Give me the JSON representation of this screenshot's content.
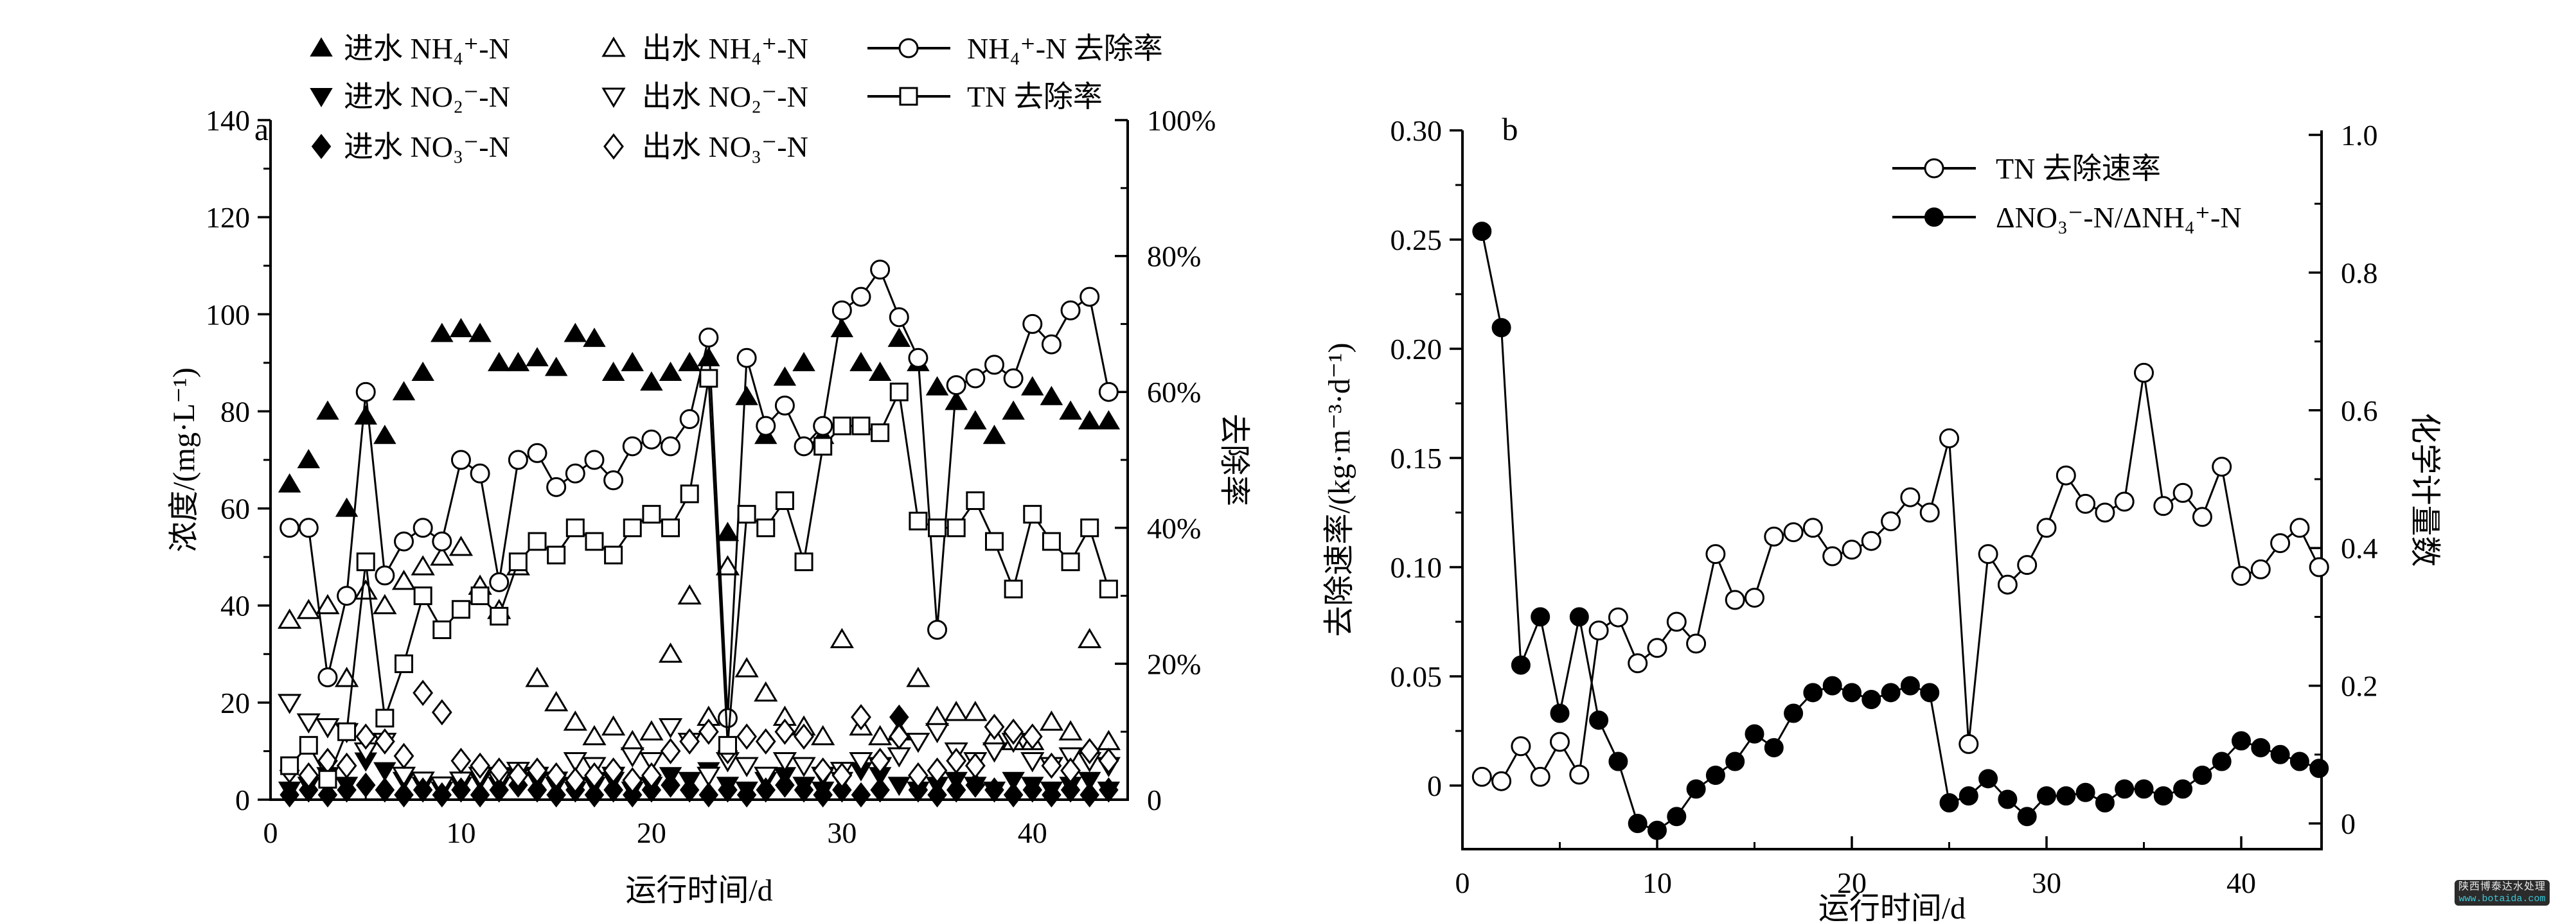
{
  "figure": {
    "background": "#ffffff",
    "ink_color": "#000000",
    "panels": [
      "a",
      "b"
    ]
  },
  "watermark": {
    "line1": "陕西博泰达水处理",
    "line2": "www.botaida.com",
    "bg_color": "#2b2b2b",
    "line1_color": "#e8e8e8",
    "line2_color": "#3bc8d6"
  },
  "chart_data": [
    {
      "panel_label": "a",
      "type": "scatter",
      "xlabel": "运行时间/d",
      "ylabel_left": "浓度/(mg·L⁻¹)",
      "ylabel_right": "去除率",
      "xlim": [
        0,
        45
      ],
      "ylim_left": [
        0,
        140
      ],
      "ylim_right_percent": [
        0,
        100
      ],
      "x_tick_labels": [
        "0",
        "10",
        "20",
        "30",
        "40"
      ],
      "x_ticks": [
        0,
        10,
        20,
        30,
        40
      ],
      "x_minor_ticks": [
        5,
        15,
        25,
        35,
        45
      ],
      "y_left_tick_labels": [
        "0",
        "20",
        "40",
        "60",
        "80",
        "100",
        "120",
        "140"
      ],
      "y_left_ticks": [
        0,
        20,
        40,
        60,
        80,
        100,
        120,
        140
      ],
      "y_left_minor_ticks": [
        10,
        30,
        50,
        70,
        90,
        110,
        130
      ],
      "y_right_tick_labels": [
        "0",
        "20%",
        "40%",
        "60%",
        "80%",
        "100%"
      ],
      "y_right_ticks": [
        0,
        20,
        40,
        60,
        80,
        100
      ],
      "y_right_minor_ticks": [
        10,
        30,
        50,
        70,
        90
      ],
      "grid": false,
      "legend_position": "top",
      "days": [
        1,
        2,
        3,
        4,
        5,
        6,
        7,
        8,
        9,
        10,
        11,
        12,
        13,
        14,
        15,
        16,
        17,
        18,
        19,
        20,
        21,
        22,
        23,
        24,
        25,
        26,
        27,
        28,
        29,
        30,
        31,
        32,
        33,
        34,
        35,
        36,
        37,
        38,
        39,
        40,
        41,
        42,
        43,
        44
      ],
      "series": [
        {
          "name": "进水 NH₄⁺-N",
          "marker": "triangle-up-filled",
          "axis": "left",
          "line": false,
          "values": [
            65,
            70,
            80,
            60,
            79,
            75,
            84,
            88,
            96,
            97,
            96,
            90,
            90,
            91,
            89,
            96,
            95,
            88,
            90,
            86,
            88,
            90,
            91,
            55,
            83,
            75,
            87,
            90,
            75,
            97,
            90,
            88,
            95,
            90,
            85,
            82,
            78,
            75,
            80,
            85,
            83,
            80,
            78,
            78
          ]
        },
        {
          "name": "出水 NH₄⁺-N",
          "marker": "triangle-up-open",
          "axis": "left",
          "line": false,
          "values": [
            37,
            39,
            40,
            25,
            43,
            40,
            45,
            48,
            50,
            52,
            44,
            39,
            48,
            25,
            20,
            16,
            13,
            15,
            12,
            14,
            30,
            42,
            17,
            48,
            27,
            22,
            17,
            15,
            13,
            33,
            15,
            13,
            14,
            25,
            17,
            18,
            18,
            13,
            12,
            12,
            16,
            14,
            33,
            12
          ]
        },
        {
          "name": "进水 NO₂⁻-N",
          "marker": "triangle-down-filled",
          "axis": "left",
          "line": false,
          "values": [
            2,
            3,
            5,
            3,
            8,
            6,
            4,
            3,
            2,
            3,
            4,
            3,
            5,
            4,
            3,
            2,
            3,
            4,
            2,
            3,
            5,
            4,
            6,
            3,
            2,
            4,
            5,
            3,
            2,
            4,
            6,
            5,
            3,
            2,
            3,
            4,
            3,
            2,
            4,
            3,
            2,
            3,
            4,
            2
          ]
        },
        {
          "name": "出水 NO₂⁻-N",
          "marker": "triangle-down-open",
          "axis": "left",
          "line": false,
          "values": [
            20,
            16,
            15,
            14,
            10,
            12,
            5,
            4,
            3,
            4,
            5,
            4,
            6,
            5,
            4,
            8,
            7,
            5,
            9,
            8,
            15,
            12,
            5,
            8,
            7,
            5,
            8,
            7,
            5,
            6,
            8,
            7,
            9,
            12,
            14,
            10,
            8,
            10,
            12,
            8,
            7,
            9,
            8,
            7
          ]
        },
        {
          "name": "进水 NO₃⁻-N",
          "marker": "diamond-filled",
          "axis": "left",
          "line": false,
          "values": [
            1,
            2,
            1,
            2,
            3,
            2,
            1,
            2,
            1,
            2,
            1,
            2,
            3,
            2,
            1,
            2,
            1,
            2,
            1,
            2,
            3,
            2,
            1,
            2,
            1,
            2,
            3,
            2,
            1,
            2,
            1,
            2,
            17,
            2,
            1,
            2,
            3,
            2,
            1,
            2,
            1,
            2,
            1,
            2
          ]
        },
        {
          "name": "出水 NO₃⁻-N",
          "marker": "diamond-open",
          "axis": "left",
          "line": false,
          "values": [
            6,
            5,
            8,
            7,
            13,
            12,
            9,
            22,
            18,
            8,
            7,
            6,
            5,
            6,
            5,
            4,
            5,
            6,
            4,
            5,
            10,
            12,
            14,
            10,
            13,
            12,
            14,
            13,
            6,
            5,
            17,
            8,
            13,
            5,
            6,
            8,
            7,
            15,
            14,
            13,
            7,
            6,
            10,
            8
          ]
        },
        {
          "name": "NH₄⁺-N 去除率",
          "marker": "circle-open",
          "axis": "right",
          "line": true,
          "values": [
            40,
            40,
            18,
            30,
            60,
            33,
            38,
            40,
            38,
            50,
            48,
            32,
            50,
            51,
            46,
            48,
            50,
            47,
            52,
            53,
            52,
            56,
            68,
            12,
            65,
            55,
            58,
            52,
            55,
            72,
            74,
            78,
            71,
            65,
            25,
            61,
            62,
            64,
            62,
            70,
            67,
            72,
            74,
            60
          ]
        },
        {
          "name": "TN 去除率",
          "marker": "square-open",
          "axis": "right",
          "line": true,
          "values": [
            5,
            8,
            3,
            10,
            35,
            12,
            20,
            30,
            25,
            28,
            30,
            27,
            35,
            38,
            36,
            40,
            38,
            36,
            40,
            42,
            40,
            45,
            62,
            8,
            42,
            40,
            44,
            35,
            52,
            55,
            55,
            54,
            60,
            41,
            40,
            40,
            44,
            38,
            31,
            42,
            38,
            35,
            40,
            31
          ]
        }
      ]
    },
    {
      "panel_label": "b",
      "type": "line",
      "xlabel": "运行时间/d",
      "ylabel_left": "去除速率/(kg·m⁻³·d⁻¹)",
      "ylabel_right": "化学计量数",
      "xlim": [
        0,
        44
      ],
      "ylim_left": [
        -0.03,
        0.3
      ],
      "ylim_right": [
        -0.04,
        1.0
      ],
      "x_tick_labels": [
        "0",
        "10",
        "20",
        "30",
        "40"
      ],
      "x_ticks": [
        0,
        10,
        20,
        30,
        40
      ],
      "x_minor_ticks": [
        5,
        15,
        25,
        35
      ],
      "y_left_tick_labels": [
        "0",
        "0.05",
        "0.10",
        "0.15",
        "0.20",
        "0.25",
        "0.30"
      ],
      "y_left_ticks": [
        0,
        0.05,
        0.1,
        0.15,
        0.2,
        0.25,
        0.3
      ],
      "y_left_minor_step": 0.025,
      "y_right_tick_labels": [
        "0",
        "0.2",
        "0.4",
        "0.6",
        "0.8",
        "1.0"
      ],
      "y_right_ticks": [
        0,
        0.2,
        0.4,
        0.6,
        0.8,
        1.0
      ],
      "y_right_minor_step": 0.1,
      "grid": false,
      "legend_position": "top-right",
      "days": [
        1,
        2,
        3,
        4,
        5,
        6,
        7,
        8,
        9,
        10,
        11,
        12,
        13,
        14,
        15,
        16,
        17,
        18,
        19,
        20,
        21,
        22,
        23,
        24,
        25,
        26,
        27,
        28,
        29,
        30,
        31,
        32,
        33,
        34,
        35,
        36,
        37,
        38,
        39,
        40,
        41,
        42,
        43,
        44
      ],
      "series": [
        {
          "name": "TN 去除速率",
          "marker": "circle-open",
          "axis": "left",
          "line": true,
          "values": [
            0.004,
            0.002,
            0.018,
            0.004,
            0.02,
            0.005,
            0.071,
            0.077,
            0.056,
            0.063,
            0.075,
            0.065,
            0.106,
            0.085,
            0.086,
            0.114,
            0.116,
            0.118,
            0.105,
            0.108,
            0.112,
            0.121,
            0.132,
            0.125,
            0.159,
            0.019,
            0.106,
            0.092,
            0.101,
            0.118,
            0.142,
            0.129,
            0.125,
            0.13,
            0.189,
            0.128,
            0.134,
            0.123,
            0.146,
            0.096,
            0.099,
            0.111,
            0.118,
            0.1
          ]
        },
        {
          "name": "ΔNO₃⁻-N/ΔNH₄⁺-N",
          "marker": "circle-filled",
          "axis": "right",
          "line": true,
          "values": [
            0.86,
            0.72,
            0.23,
            0.3,
            0.16,
            0.3,
            0.15,
            0.09,
            0.0,
            -0.01,
            0.01,
            0.05,
            0.07,
            0.09,
            0.13,
            0.11,
            0.16,
            0.19,
            0.2,
            0.19,
            0.18,
            0.19,
            0.2,
            0.19,
            0.03,
            0.04,
            0.065,
            0.035,
            0.01,
            0.04,
            0.04,
            0.045,
            0.03,
            0.05,
            0.05,
            0.04,
            0.05,
            0.07,
            0.09,
            0.12,
            0.11,
            0.1,
            0.09,
            0.08
          ]
        }
      ]
    }
  ]
}
